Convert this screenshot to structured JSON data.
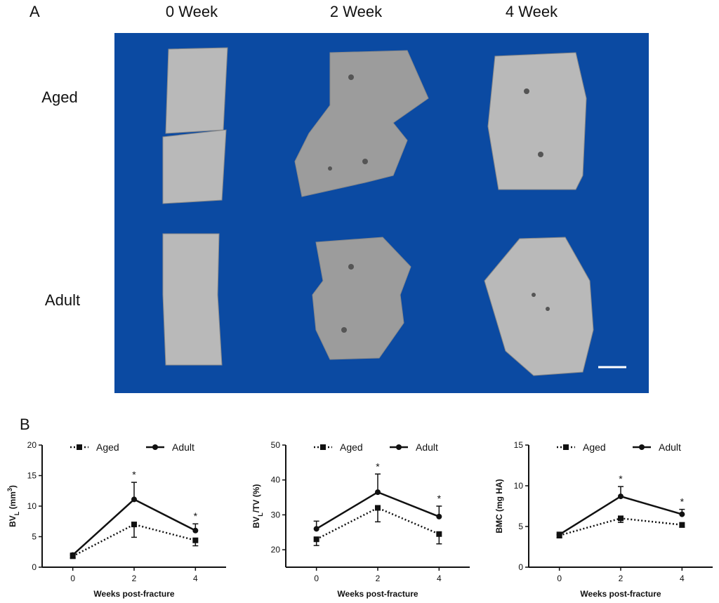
{
  "panel_a": {
    "label": "A",
    "columns": [
      "0 Week",
      "2 Week",
      "4 Week"
    ],
    "rows": [
      "Aged",
      "Adult"
    ]
  },
  "panel_b": {
    "label": "B"
  },
  "chart_data": [
    {
      "type": "line",
      "y_label_parts": [
        {
          "text": "BV"
        },
        {
          "text": "L",
          "shift": "sub"
        },
        {
          "text": " (mm"
        },
        {
          "text": "3",
          "shift": "super"
        },
        {
          "text": ")"
        }
      ],
      "x_label": "Weeks post-fracture",
      "x": [
        0,
        2,
        4
      ],
      "xlim": [
        -1,
        5
      ],
      "xticks": [
        0,
        2,
        4
      ],
      "ylim": [
        0,
        20
      ],
      "yticks": [
        0,
        5,
        10,
        15,
        20
      ],
      "legend": "top",
      "series": [
        {
          "name": "Aged",
          "color": "#111111",
          "line_style": "dotted",
          "marker": "square",
          "error_direction": "down",
          "values": [
            1.8,
            7.0,
            4.4
          ],
          "errors": [
            0.3,
            2.1,
            0.9
          ]
        },
        {
          "name": "Adult",
          "color": "#111111",
          "line_style": "solid",
          "marker": "circle",
          "error_direction": "up",
          "values": [
            2.0,
            11.1,
            6.0
          ],
          "errors": [
            0.3,
            2.8,
            1.1
          ]
        }
      ],
      "annotations": [
        {
          "text": "*",
          "x": 2
        },
        {
          "text": "*",
          "x": 4
        }
      ]
    },
    {
      "type": "line",
      "y_label_parts": [
        {
          "text": "BV"
        },
        {
          "text": "L",
          "shift": "sub"
        },
        {
          "text": "/TV (%)"
        }
      ],
      "x_label": "Weeks post-fracture",
      "x": [
        0,
        2,
        4
      ],
      "xlim": [
        -1,
        5
      ],
      "xticks": [
        0,
        2,
        4
      ],
      "ylim": [
        15,
        50
      ],
      "yticks": [
        20,
        30,
        40,
        50
      ],
      "legend": "top",
      "series": [
        {
          "name": "Aged",
          "color": "#111111",
          "line_style": "dotted",
          "marker": "square",
          "error_direction": "down",
          "values": [
            23,
            32,
            24.5
          ],
          "errors": [
            1.8,
            4,
            2.8
          ]
        },
        {
          "name": "Adult",
          "color": "#111111",
          "line_style": "solid",
          "marker": "circle",
          "error_direction": "up",
          "values": [
            26,
            36.5,
            29.5
          ],
          "errors": [
            2.2,
            5.2,
            3
          ]
        }
      ],
      "annotations": [
        {
          "text": "*",
          "x": 2
        },
        {
          "text": "*",
          "x": 4
        }
      ]
    },
    {
      "type": "line",
      "y_label_parts": [
        {
          "text": "BMC (mg HA)"
        }
      ],
      "x_label": "Weeks post-fracture",
      "x": [
        0,
        2,
        4
      ],
      "xlim": [
        -1,
        5
      ],
      "xticks": [
        0,
        2,
        4
      ],
      "ylim": [
        0,
        15
      ],
      "yticks": [
        0,
        5,
        10,
        15
      ],
      "legend": "top",
      "series": [
        {
          "name": "Aged",
          "color": "#111111",
          "line_style": "dotted",
          "marker": "square",
          "error_direction": "down",
          "values": [
            3.9,
            6.0,
            5.2
          ],
          "errors": [
            0.3,
            0.5,
            0.3
          ]
        },
        {
          "name": "Adult",
          "color": "#111111",
          "line_style": "solid",
          "marker": "circle",
          "error_direction": "up",
          "values": [
            4.0,
            8.7,
            6.5
          ],
          "errors": [
            0.3,
            1.2,
            0.6
          ]
        }
      ],
      "annotations": [
        {
          "text": "*",
          "x": 2
        },
        {
          "text": "*",
          "x": 4
        }
      ]
    }
  ]
}
